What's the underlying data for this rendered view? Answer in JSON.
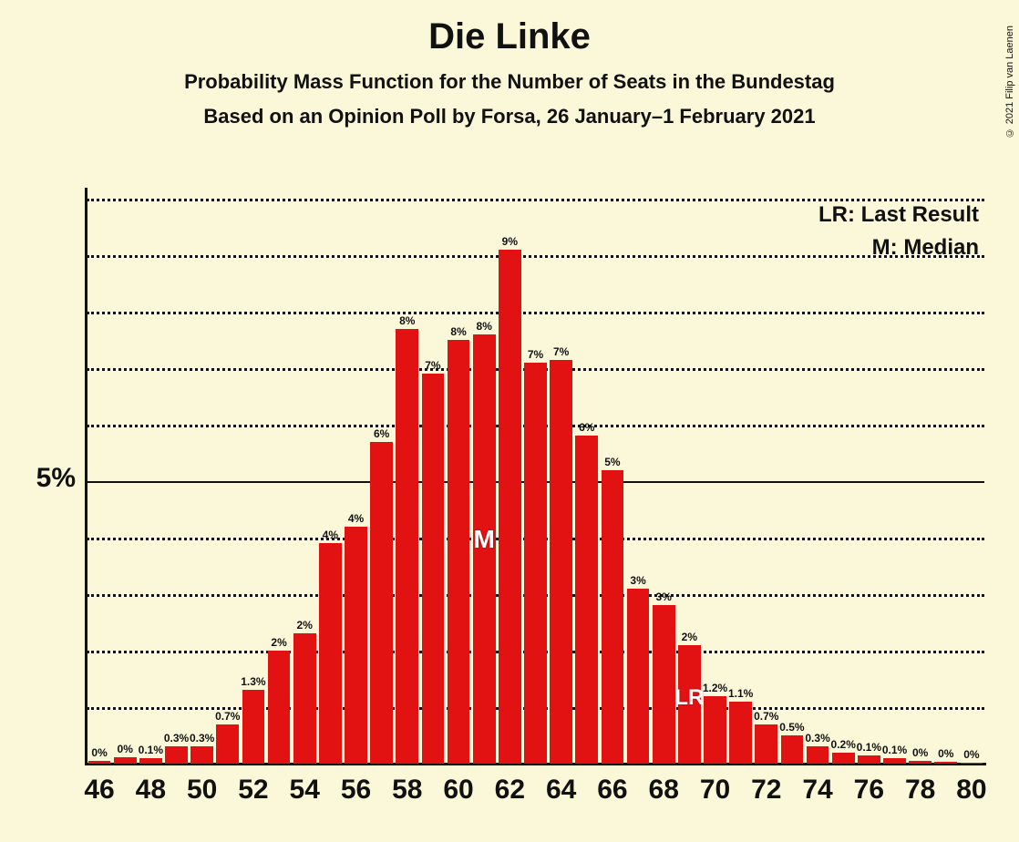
{
  "title": "Die Linke",
  "subtitle1": "Probability Mass Function for the Number of Seats in the Bundestag",
  "subtitle2": "Based on an Opinion Poll by Forsa, 26 January–1 February 2021",
  "copyright": "© 2021 Filip van Laenen",
  "legend": {
    "lr": "LR: Last Result",
    "m": "M: Median"
  },
  "chart": {
    "type": "bar",
    "background_color": "#fbf8da",
    "bar_color": "#e31212",
    "text_color": "#111111",
    "grid_color": "#111111",
    "title_fontsize": 40,
    "subtitle_fontsize": 22,
    "axis_label_fontsize": 30,
    "bar_label_fontsize": 12,
    "legend_fontsize": 24,
    "marker_fontsize": 28,
    "ylim": [
      0,
      10
    ],
    "y_solid_tick": 5,
    "y_dotted_ticks": [
      1,
      2,
      3,
      4,
      6,
      7,
      8,
      9,
      10
    ],
    "y_tick_label": "5%",
    "x_range": [
      46,
      80
    ],
    "x_tick_step": 2,
    "bar_gap_ratio": 0.12,
    "median_x": 61,
    "median_label": "M",
    "lr_x": 69,
    "lr_label": "LR",
    "data": [
      {
        "x": 46,
        "v": 0,
        "lab": "0%",
        "bh": 0.05
      },
      {
        "x": 47,
        "v": 0,
        "lab": "0%",
        "bh": 0.12
      },
      {
        "x": 48,
        "v": 0.1,
        "lab": "0.1%"
      },
      {
        "x": 49,
        "v": 0.3,
        "lab": "0.3%"
      },
      {
        "x": 50,
        "v": 0.3,
        "lab": "0.3%"
      },
      {
        "x": 51,
        "v": 0.7,
        "lab": "0.7%"
      },
      {
        "x": 52,
        "v": 1.3,
        "lab": "1.3%"
      },
      {
        "x": 53,
        "v": 2,
        "lab": "2%"
      },
      {
        "x": 54,
        "v": 2,
        "lab": "2%",
        "bh": 2.3
      },
      {
        "x": 55,
        "v": 4,
        "lab": "4%",
        "bh": 3.9
      },
      {
        "x": 56,
        "v": 4,
        "lab": "4%",
        "bh": 4.2
      },
      {
        "x": 57,
        "v": 6,
        "lab": "6%",
        "bh": 5.7
      },
      {
        "x": 58,
        "v": 8,
        "lab": "8%",
        "bh": 7.7
      },
      {
        "x": 59,
        "v": 7,
        "lab": "7%",
        "bh": 6.9
      },
      {
        "x": 60,
        "v": 8,
        "lab": "8%",
        "bh": 7.5
      },
      {
        "x": 61,
        "v": 8,
        "lab": "8%",
        "bh": 7.6
      },
      {
        "x": 62,
        "v": 9,
        "lab": "9%",
        "bh": 9.1
      },
      {
        "x": 63,
        "v": 7,
        "lab": "7%",
        "bh": 7.1
      },
      {
        "x": 64,
        "v": 7,
        "lab": "7%",
        "bh": 7.15
      },
      {
        "x": 65,
        "v": 6,
        "lab": "6%",
        "bh": 5.8
      },
      {
        "x": 66,
        "v": 5,
        "lab": "5%",
        "bh": 5.2
      },
      {
        "x": 67,
        "v": 3,
        "lab": "3%",
        "bh": 3.1
      },
      {
        "x": 68,
        "v": 3,
        "lab": "3%",
        "bh": 2.8
      },
      {
        "x": 69,
        "v": 2,
        "lab": "2%",
        "bh": 2.1
      },
      {
        "x": 70,
        "v": 1.2,
        "lab": "1.2%"
      },
      {
        "x": 71,
        "v": 1.1,
        "lab": "1.1%"
      },
      {
        "x": 72,
        "v": 0.7,
        "lab": "0.7%"
      },
      {
        "x": 73,
        "v": 0.5,
        "lab": "0.5%"
      },
      {
        "x": 74,
        "v": 0.3,
        "lab": "0.3%"
      },
      {
        "x": 75,
        "v": 0.2,
        "lab": "0.2%"
      },
      {
        "x": 76,
        "v": 0.1,
        "lab": "0.1%",
        "bh": 0.15
      },
      {
        "x": 77,
        "v": 0.1,
        "lab": "0.1%"
      },
      {
        "x": 78,
        "v": 0,
        "lab": "0%",
        "bh": 0.05
      },
      {
        "x": 79,
        "v": 0,
        "lab": "0%",
        "bh": 0.03
      },
      {
        "x": 80,
        "v": 0,
        "lab": "0%",
        "bh": 0.02
      }
    ]
  }
}
